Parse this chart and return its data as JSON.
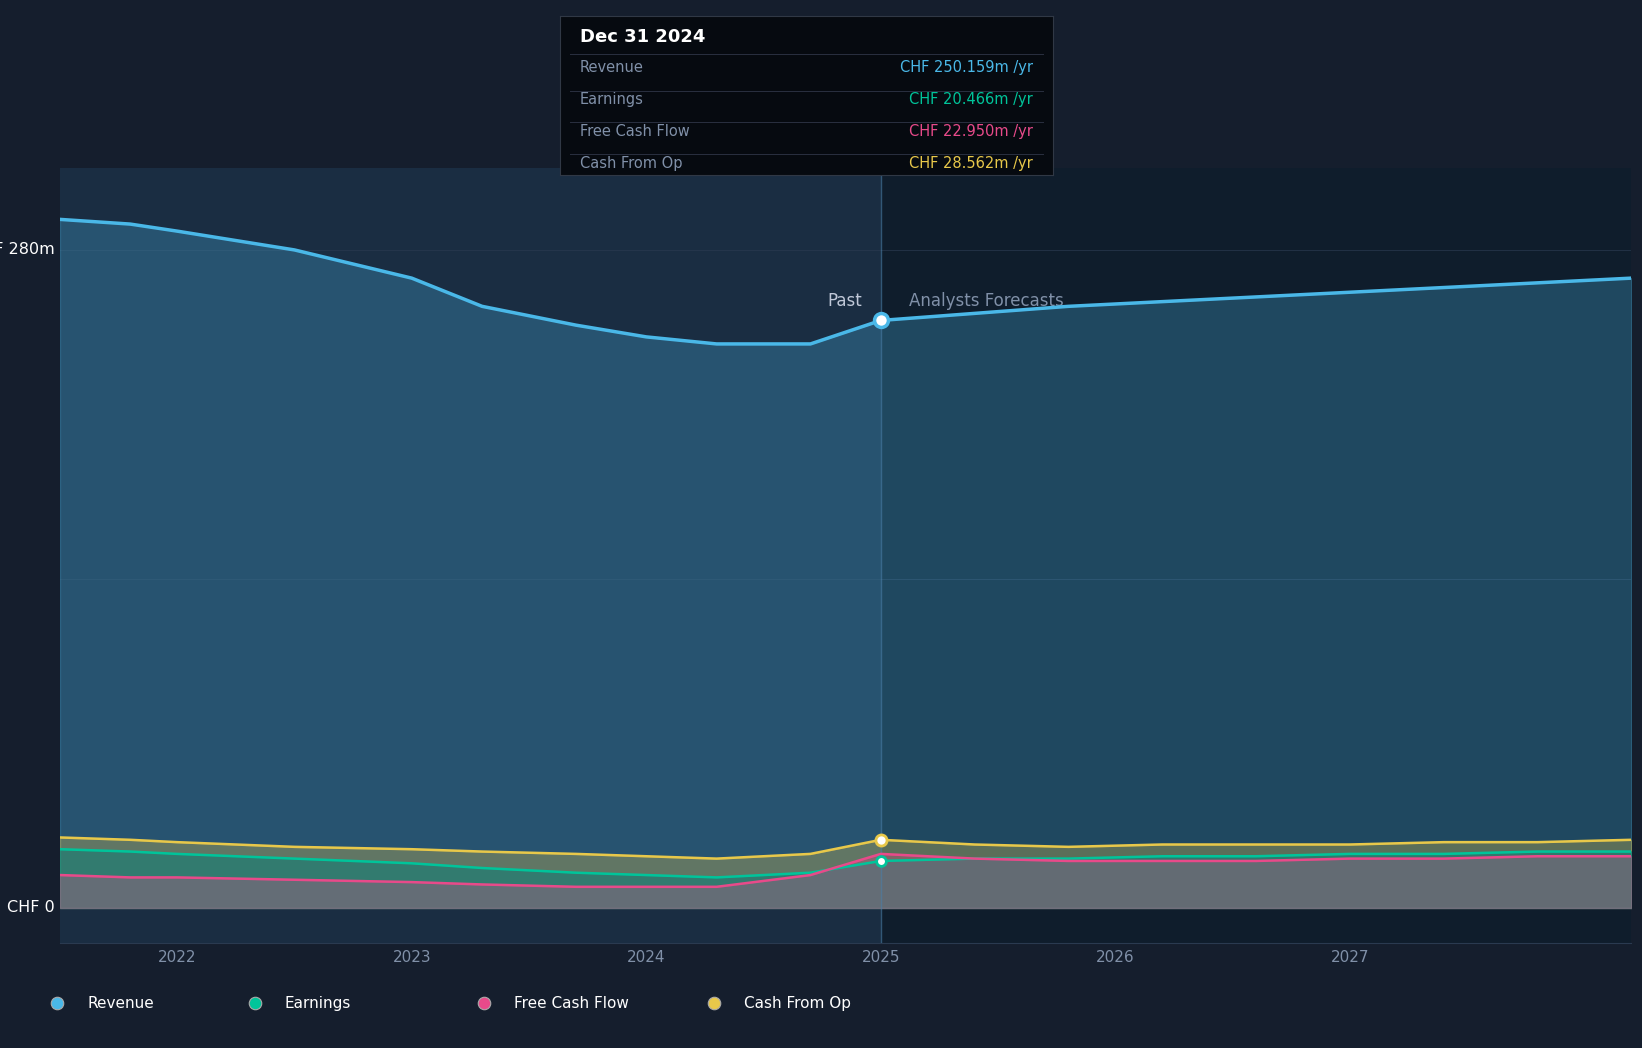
{
  "bg_color": "#151e2d",
  "plot_bg_past": "#1a2d42",
  "plot_bg_forecast": "#0f1d2c",
  "divider_x": 2025.0,
  "x_min": 2021.5,
  "x_max": 2028.2,
  "y_min": -15,
  "y_max": 315,
  "xtick_labels": [
    "2022",
    "2023",
    "2024",
    "2025",
    "2026",
    "2027"
  ],
  "xtick_values": [
    2022,
    2023,
    2024,
    2025,
    2026,
    2027
  ],
  "past_label": "Past",
  "forecast_label": "Analysts Forecasts",
  "tooltip_title": "Dec 31 2024",
  "tooltip_rows": [
    {
      "label": "Revenue",
      "value": "CHF 250.159m /yr",
      "color": "#4ab8e8"
    },
    {
      "label": "Earnings",
      "value": "CHF 20.466m /yr",
      "color": "#00c49a"
    },
    {
      "label": "Free Cash Flow",
      "value": "CHF 22.950m /yr",
      "color": "#e84a8a"
    },
    {
      "label": "Cash From Op",
      "value": "CHF 28.562m /yr",
      "color": "#e8c84a"
    }
  ],
  "revenue": {
    "x": [
      2021.5,
      2021.8,
      2022.0,
      2022.5,
      2023.0,
      2023.3,
      2023.7,
      2024.0,
      2024.3,
      2024.7,
      2025.0,
      2025.4,
      2025.8,
      2026.2,
      2026.6,
      2027.0,
      2027.4,
      2027.8,
      2028.2
    ],
    "y": [
      293,
      291,
      288,
      280,
      268,
      256,
      248,
      243,
      240,
      240,
      250,
      253,
      256,
      258,
      260,
      262,
      264,
      266,
      268
    ],
    "color": "#4ab8e8"
  },
  "earnings": {
    "x": [
      2021.5,
      2021.8,
      2022.0,
      2022.5,
      2023.0,
      2023.3,
      2023.7,
      2024.0,
      2024.3,
      2024.7,
      2025.0,
      2025.4,
      2025.8,
      2026.2,
      2026.6,
      2027.0,
      2027.4,
      2027.8,
      2028.2
    ],
    "y": [
      25,
      24,
      23,
      21,
      19,
      17,
      15,
      14,
      13,
      15,
      20,
      21,
      21,
      22,
      22,
      23,
      23,
      24,
      24
    ],
    "color": "#00c49a"
  },
  "free_cash_flow": {
    "x": [
      2021.5,
      2021.8,
      2022.0,
      2022.5,
      2023.0,
      2023.3,
      2023.7,
      2024.0,
      2024.3,
      2024.7,
      2025.0,
      2025.4,
      2025.8,
      2026.2,
      2026.6,
      2027.0,
      2027.4,
      2027.8,
      2028.2
    ],
    "y": [
      14,
      13,
      13,
      12,
      11,
      10,
      9,
      9,
      9,
      14,
      23,
      21,
      20,
      20,
      20,
      21,
      21,
      22,
      22
    ],
    "color": "#e84a8a"
  },
  "cash_from_op": {
    "x": [
      2021.5,
      2021.8,
      2022.0,
      2022.5,
      2023.0,
      2023.3,
      2023.7,
      2024.0,
      2024.3,
      2024.7,
      2025.0,
      2025.4,
      2025.8,
      2026.2,
      2026.6,
      2027.0,
      2027.4,
      2027.8,
      2028.2
    ],
    "y": [
      30,
      29,
      28,
      26,
      25,
      24,
      23,
      22,
      21,
      23,
      29,
      27,
      26,
      27,
      27,
      27,
      28,
      28,
      29
    ],
    "color": "#e8c84a"
  },
  "marker_x": 2025.0,
  "legend_items": [
    {
      "label": "Revenue",
      "color": "#4ab8e8"
    },
    {
      "label": "Earnings",
      "color": "#00c49a"
    },
    {
      "label": "Free Cash Flow",
      "color": "#e84a8a"
    },
    {
      "label": "Cash From Op",
      "color": "#e8c84a"
    }
  ]
}
